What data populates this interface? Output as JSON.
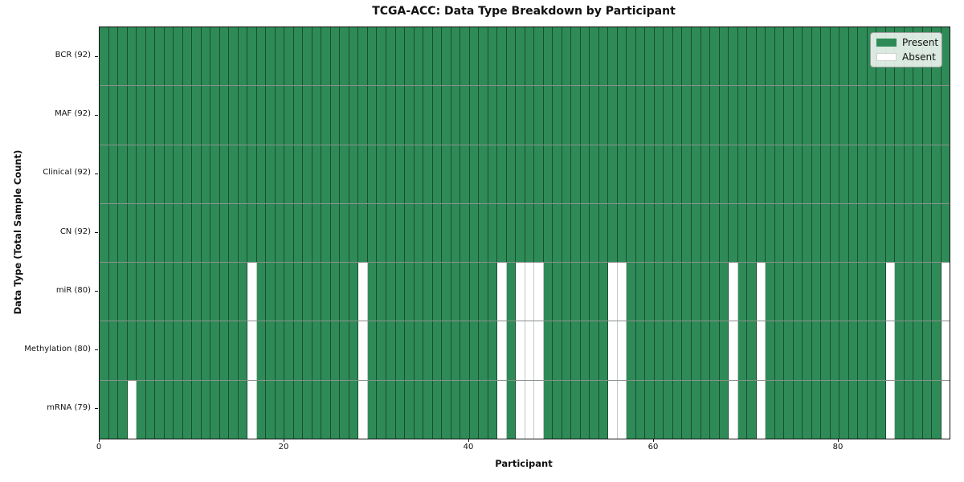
{
  "chart_data": {
    "type": "heatmap",
    "title": "TCGA-ACC: Data Type Breakdown by Participant",
    "xlabel": "Participant",
    "ylabel": "Data Type (Total Sample Count)",
    "n_participants": 92,
    "x_range": [
      0,
      92
    ],
    "x_ticks": [
      0,
      20,
      40,
      60,
      80
    ],
    "grid": false,
    "legend_position": "upper right",
    "legend": [
      {
        "label": "Present",
        "color": "#2e8b57"
      },
      {
        "label": "Absent",
        "color": "#ffffff"
      }
    ],
    "rows": [
      {
        "name": "BCR",
        "label": "BCR (92)",
        "total_samples": 92,
        "absent_participants": []
      },
      {
        "name": "MAF",
        "label": "MAF (92)",
        "total_samples": 92,
        "absent_participants": []
      },
      {
        "name": "Clinical",
        "label": "Clinical (92)",
        "total_samples": 92,
        "absent_participants": []
      },
      {
        "name": "CN",
        "label": "CN (92)",
        "total_samples": 92,
        "absent_participants": []
      },
      {
        "name": "miR",
        "label": "miR (80)",
        "total_samples": 80,
        "absent_participants": [
          16,
          28,
          43,
          45,
          46,
          47,
          55,
          56,
          68,
          71,
          85,
          91
        ]
      },
      {
        "name": "Methylation",
        "label": "Methylation (80)",
        "total_samples": 80,
        "absent_participants": [
          16,
          28,
          43,
          45,
          46,
          47,
          55,
          56,
          68,
          71,
          85,
          91
        ]
      },
      {
        "name": "mRNA",
        "label": "mRNA (79)",
        "total_samples": 79,
        "absent_participants": [
          3,
          16,
          28,
          43,
          45,
          46,
          47,
          55,
          56,
          68,
          71,
          85,
          91
        ]
      }
    ]
  }
}
